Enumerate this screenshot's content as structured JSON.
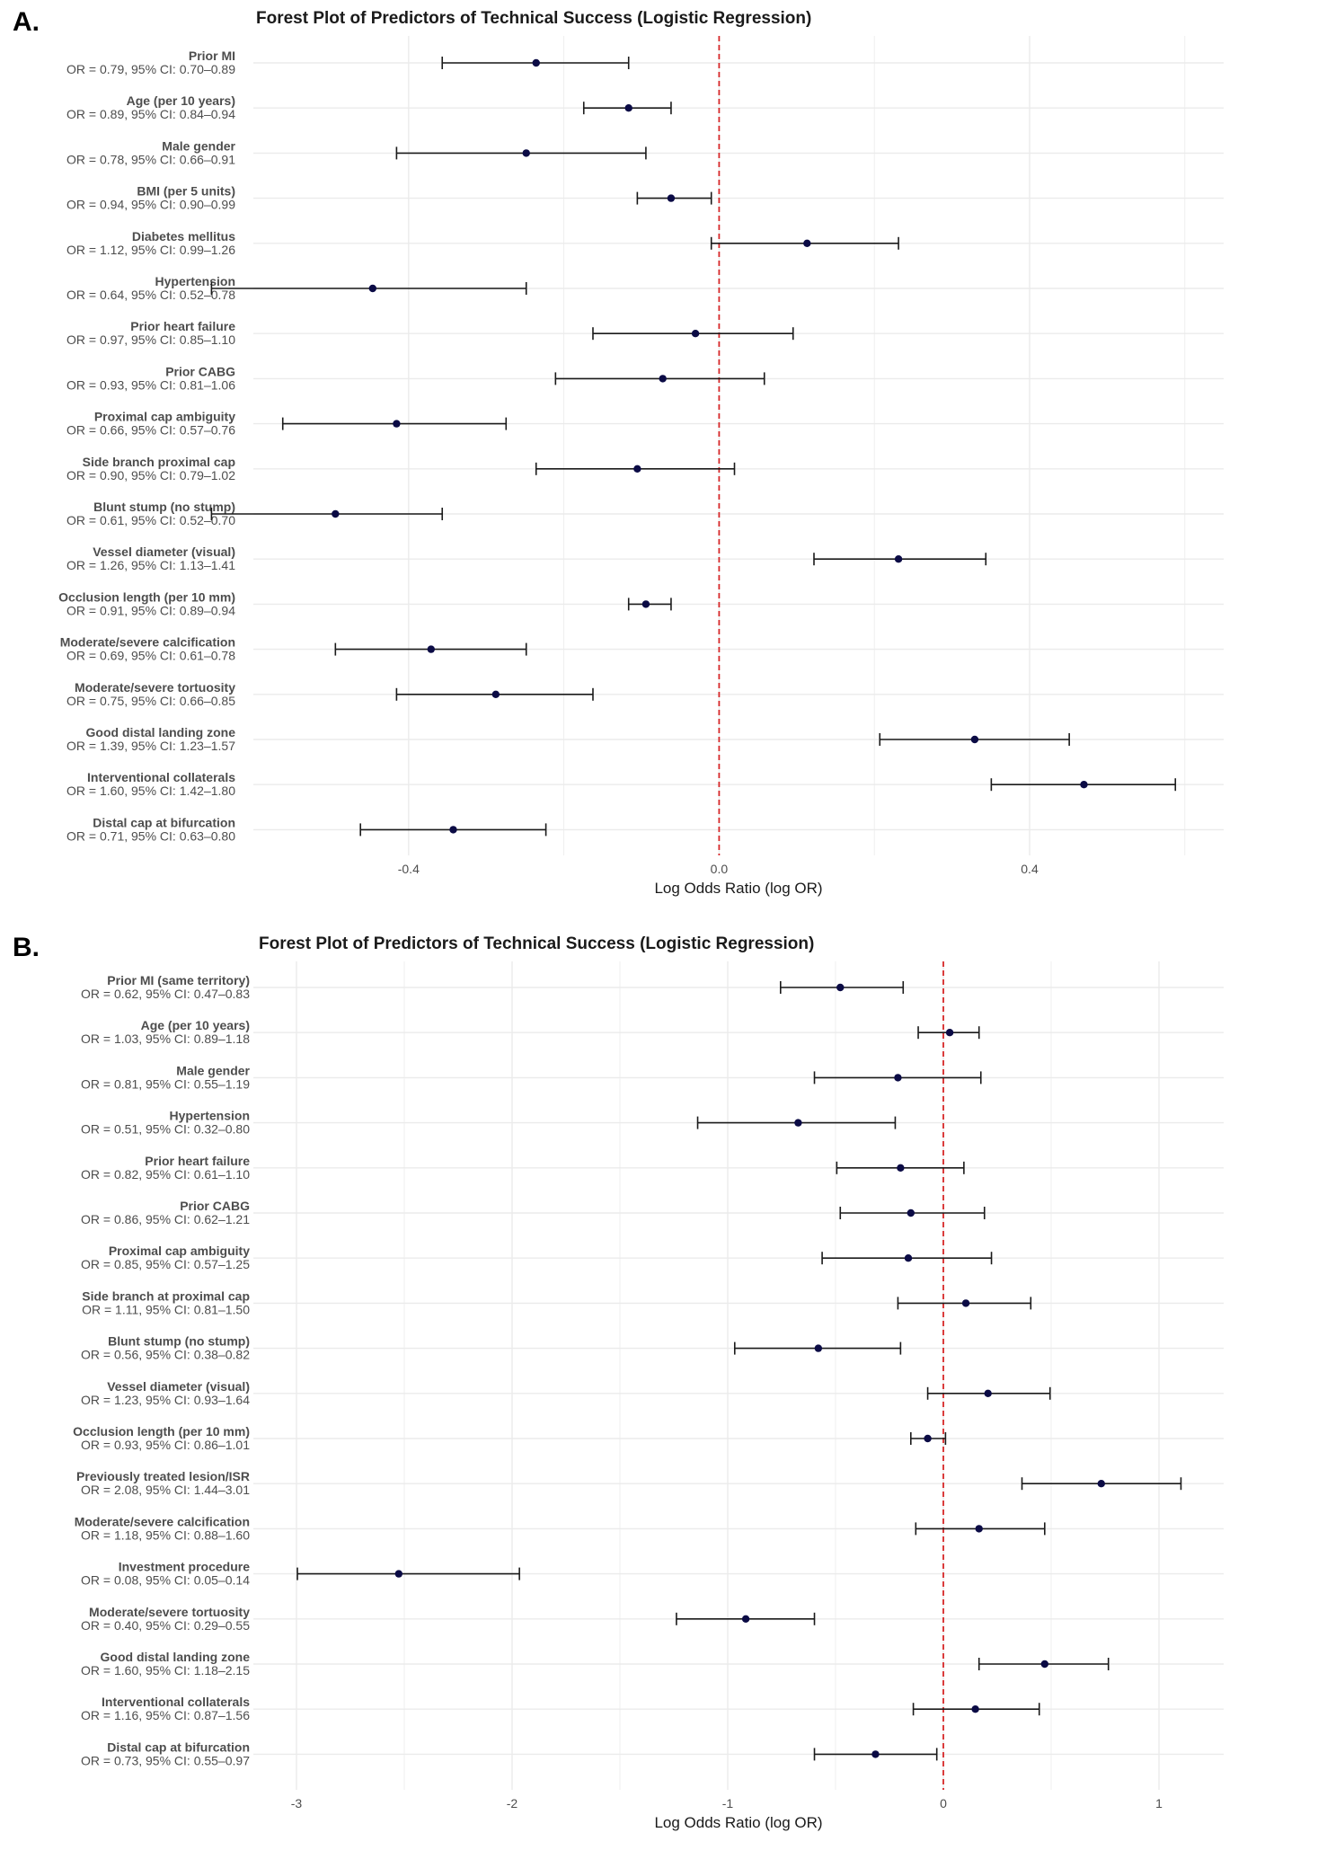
{
  "chart_data": [
    {
      "panel": "A.",
      "type": "forest",
      "title": "Forest Plot of Predictors of Technical Success (Logistic Regression)",
      "xlabel": "Log Odds Ratio (log OR)",
      "xlim": [
        -0.6,
        0.65
      ],
      "xticks": [
        -0.4,
        0.0,
        0.4
      ],
      "xtick_labels": [
        "-0.4",
        "0.0",
        "0.4"
      ],
      "reference_line": 0,
      "rows": [
        {
          "label": "Prior MI",
          "text": "OR = 0.79, 95% CI: 0.70–0.89",
          "or": 0.79,
          "lo": 0.7,
          "hi": 0.89
        },
        {
          "label": "Age (per 10 years)",
          "text": "OR = 0.89, 95% CI: 0.84–0.94",
          "or": 0.89,
          "lo": 0.84,
          "hi": 0.94
        },
        {
          "label": "Male gender",
          "text": "OR = 0.78, 95% CI: 0.66–0.91",
          "or": 0.78,
          "lo": 0.66,
          "hi": 0.91
        },
        {
          "label": "BMI (per 5 units)",
          "text": "OR = 0.94, 95% CI: 0.90–0.99",
          "or": 0.94,
          "lo": 0.9,
          "hi": 0.99
        },
        {
          "label": "Diabetes mellitus",
          "text": "OR = 1.12, 95% CI: 0.99–1.26",
          "or": 1.12,
          "lo": 0.99,
          "hi": 1.26
        },
        {
          "label": "Hypertension",
          "text": "OR = 0.64, 95% CI: 0.52–0.78",
          "or": 0.64,
          "lo": 0.52,
          "hi": 0.78
        },
        {
          "label": "Prior heart failure",
          "text": "OR = 0.97, 95% CI: 0.85–1.10",
          "or": 0.97,
          "lo": 0.85,
          "hi": 1.1
        },
        {
          "label": "Prior CABG",
          "text": "OR = 0.93, 95% CI: 0.81–1.06",
          "or": 0.93,
          "lo": 0.81,
          "hi": 1.06
        },
        {
          "label": "Proximal cap ambiguity",
          "text": "OR = 0.66, 95% CI: 0.57–0.76",
          "or": 0.66,
          "lo": 0.57,
          "hi": 0.76
        },
        {
          "label": "Side branch proximal cap",
          "text": "OR = 0.90, 95% CI: 0.79–1.02",
          "or": 0.9,
          "lo": 0.79,
          "hi": 1.02
        },
        {
          "label": "Blunt stump (no stump)",
          "text": "OR = 0.61, 95% CI: 0.52–0.70",
          "or": 0.61,
          "lo": 0.52,
          "hi": 0.7
        },
        {
          "label": "Vessel diameter (visual)",
          "text": "OR = 1.26, 95% CI: 1.13–1.41",
          "or": 1.26,
          "lo": 1.13,
          "hi": 1.41
        },
        {
          "label": "Occlusion length (per 10 mm)",
          "text": "OR = 0.91, 95% CI: 0.89–0.94",
          "or": 0.91,
          "lo": 0.89,
          "hi": 0.94
        },
        {
          "label": "Moderate/severe calcification",
          "text": "OR = 0.69, 95% CI: 0.61–0.78",
          "or": 0.69,
          "lo": 0.61,
          "hi": 0.78
        },
        {
          "label": "Moderate/severe tortuosity",
          "text": "OR = 0.75, 95% CI: 0.66–0.85",
          "or": 0.75,
          "lo": 0.66,
          "hi": 0.85
        },
        {
          "label": "Good distal landing zone",
          "text": "OR = 1.39, 95% CI: 1.23–1.57",
          "or": 1.39,
          "lo": 1.23,
          "hi": 1.57
        },
        {
          "label": "Interventional collaterals",
          "text": "OR = 1.60, 95% CI: 1.42–1.80",
          "or": 1.6,
          "lo": 1.42,
          "hi": 1.8
        },
        {
          "label": "Distal cap at bifurcation",
          "text": "OR = 0.71, 95% CI: 0.63–0.80",
          "or": 0.71,
          "lo": 0.63,
          "hi": 0.8
        }
      ]
    },
    {
      "panel": "B.",
      "type": "forest",
      "title": "Forest Plot of Predictors of Technical Success (Logistic Regression)",
      "xlabel": "Log Odds Ratio (log OR)",
      "xlim": [
        -3.2,
        1.3
      ],
      "xticks": [
        -3,
        -2,
        -1,
        0,
        1
      ],
      "xtick_labels": [
        "-3",
        "-2",
        "-1",
        "0",
        "1"
      ],
      "reference_line": 0,
      "rows": [
        {
          "label": "Prior MI (same territory)",
          "text": "OR = 0.62, 95% CI: 0.47–0.83",
          "or": 0.62,
          "lo": 0.47,
          "hi": 0.83
        },
        {
          "label": "Age (per 10 years)",
          "text": "OR = 1.03, 95% CI: 0.89–1.18",
          "or": 1.03,
          "lo": 0.89,
          "hi": 1.18
        },
        {
          "label": "Male gender",
          "text": "OR = 0.81, 95% CI: 0.55–1.19",
          "or": 0.81,
          "lo": 0.55,
          "hi": 1.19
        },
        {
          "label": "Hypertension",
          "text": "OR = 0.51, 95% CI: 0.32–0.80",
          "or": 0.51,
          "lo": 0.32,
          "hi": 0.8
        },
        {
          "label": "Prior heart failure",
          "text": "OR = 0.82, 95% CI: 0.61–1.10",
          "or": 0.82,
          "lo": 0.61,
          "hi": 1.1
        },
        {
          "label": "Prior CABG",
          "text": "OR = 0.86, 95% CI: 0.62–1.21",
          "or": 0.86,
          "lo": 0.62,
          "hi": 1.21
        },
        {
          "label": "Proximal cap ambiguity",
          "text": "OR = 0.85, 95% CI: 0.57–1.25",
          "or": 0.85,
          "lo": 0.57,
          "hi": 1.25
        },
        {
          "label": "Side branch at proximal cap",
          "text": "OR = 1.11, 95% CI: 0.81–1.50",
          "or": 1.11,
          "lo": 0.81,
          "hi": 1.5
        },
        {
          "label": "Blunt stump (no stump)",
          "text": "OR = 0.56, 95% CI: 0.38–0.82",
          "or": 0.56,
          "lo": 0.38,
          "hi": 0.82
        },
        {
          "label": "Vessel diameter (visual)",
          "text": "OR = 1.23, 95% CI: 0.93–1.64",
          "or": 1.23,
          "lo": 0.93,
          "hi": 1.64
        },
        {
          "label": "Occlusion length (per 10 mm)",
          "text": "OR = 0.93, 95% CI: 0.86–1.01",
          "or": 0.93,
          "lo": 0.86,
          "hi": 1.01
        },
        {
          "label": "Previously treated lesion/ISR",
          "text": "OR = 2.08, 95% CI: 1.44–3.01",
          "or": 2.08,
          "lo": 1.44,
          "hi": 3.01
        },
        {
          "label": "Moderate/severe calcification",
          "text": "OR = 1.18, 95% CI: 0.88–1.60",
          "or": 1.18,
          "lo": 0.88,
          "hi": 1.6
        },
        {
          "label": "Investment procedure",
          "text": "OR = 0.08, 95% CI: 0.05–0.14",
          "or": 0.08,
          "lo": 0.05,
          "hi": 0.14
        },
        {
          "label": "Moderate/severe tortuosity",
          "text": "OR = 0.40, 95% CI: 0.29–0.55",
          "or": 0.4,
          "lo": 0.29,
          "hi": 0.55
        },
        {
          "label": "Good distal landing zone",
          "text": "OR = 1.60, 95% CI: 1.18–2.15",
          "or": 1.6,
          "lo": 1.18,
          "hi": 2.15
        },
        {
          "label": "Interventional collaterals",
          "text": "OR = 1.16, 95% CI: 0.87–1.56",
          "or": 1.16,
          "lo": 0.87,
          "hi": 1.56
        },
        {
          "label": "Distal cap at bifurcation",
          "text": "OR = 0.73, 95% CI: 0.55–0.97",
          "or": 0.73,
          "lo": 0.55,
          "hi": 0.97
        }
      ]
    }
  ],
  "colors": {
    "point": "#0b0b45",
    "whisker": "#1a1a1a",
    "reference_line": "#d62728",
    "grid": "#ebebeb",
    "label_text": "#4d4d4d"
  }
}
